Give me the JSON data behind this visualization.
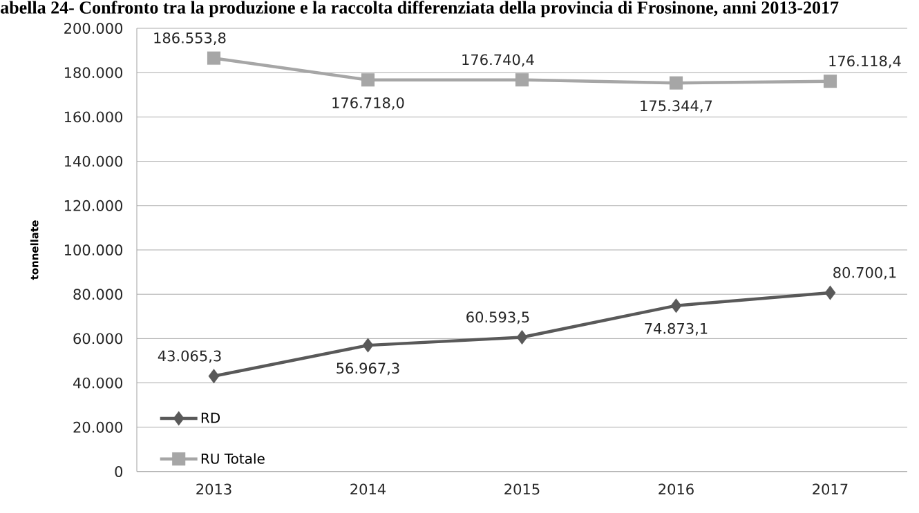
{
  "chart_data": {
    "type": "line",
    "title": "abella 24- Confronto tra la produzione e la raccolta differenziata della provincia di Frosinone, anni 2013-2017",
    "ylabel": "tonnellate",
    "categories": [
      "2013",
      "2014",
      "2015",
      "2016",
      "2017"
    ],
    "series": [
      {
        "name": "RD",
        "color": "#595959",
        "marker": "diamond",
        "values": [
          43065.3,
          56967.3,
          60593.5,
          74873.1,
          80700.1
        ],
        "value_labels": [
          "43.065,3",
          "56.967,3",
          "60.593,5",
          "74.873,1",
          "80.700,1"
        ]
      },
      {
        "name": "RU Totale",
        "color": "#a6a6a6",
        "marker": "square",
        "values": [
          186553.8,
          176718.0,
          176740.4,
          175344.7,
          176118.4
        ],
        "value_labels": [
          "186.553,8",
          "176.718,0",
          "176.740,4",
          "175.344,7",
          "176.118,4"
        ]
      }
    ],
    "ylim": [
      0,
      200000
    ],
    "yticks": [
      0,
      {
        "value": 20000,
        "label": "20.000"
      },
      {
        "value": 40000,
        "label": "40.000"
      },
      {
        "value": 60000,
        "label": "60.000"
      },
      {
        "value": 80000,
        "label": "80.000"
      },
      {
        "value": 100000,
        "label": "100.000"
      },
      {
        "value": 120000,
        "label": "120.000"
      },
      {
        "value": 140000,
        "label": "140.000"
      },
      {
        "value": 160000,
        "label": "160.000"
      },
      {
        "value": 180000,
        "label": "180.000"
      },
      {
        "value": 200000,
        "label": "200.000"
      }
    ],
    "grid": "y",
    "legend": "bottom left",
    "line_style": "solid"
  }
}
